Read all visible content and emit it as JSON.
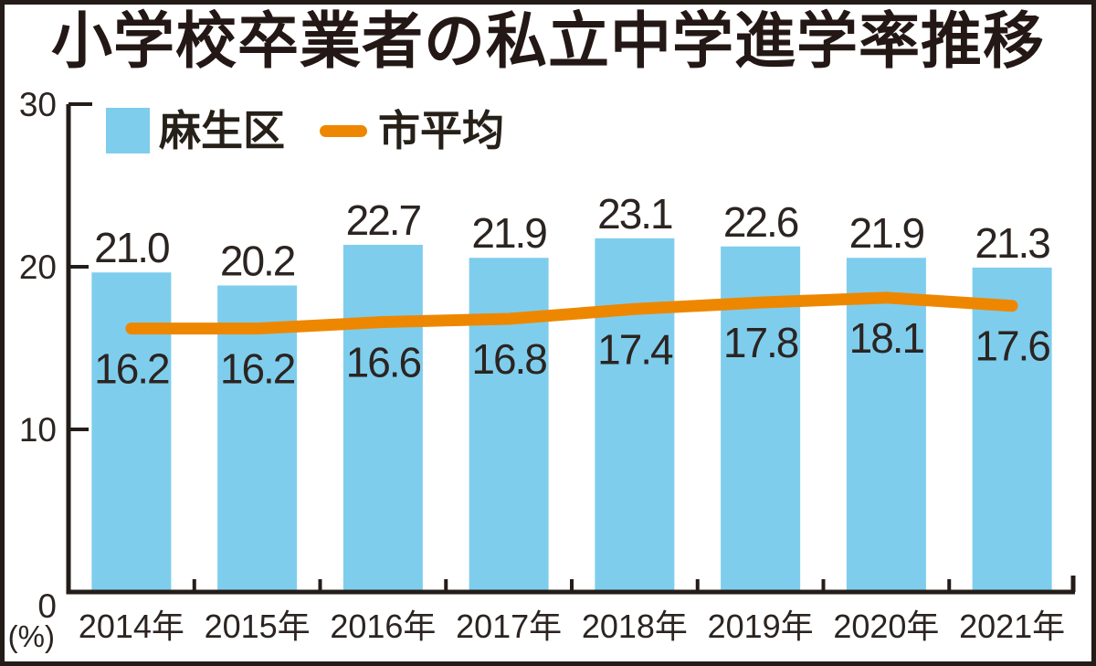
{
  "title": "小学校卒業者の私立中学進学率推移",
  "legend": [
    {
      "label": "麻生区",
      "swatch": "bar-square",
      "color": "#7fcded"
    },
    {
      "label": "市平均",
      "swatch": "line-segment",
      "color": "#ee8700"
    }
  ],
  "chart_data": {
    "type": "bar",
    "subtype": "bar+line combo",
    "categories": [
      "2014年",
      "2015年",
      "2016年",
      "2017年",
      "2018年",
      "2019年",
      "2020年",
      "2021年"
    ],
    "series": [
      {
        "name": "麻生区",
        "type": "bar",
        "color": "#7fcded",
        "values": [
          21.0,
          20.2,
          22.7,
          21.9,
          23.1,
          22.6,
          21.9,
          21.3
        ]
      },
      {
        "name": "市平均",
        "type": "line",
        "color": "#ee8700",
        "values": [
          16.2,
          16.2,
          16.6,
          16.8,
          17.4,
          17.8,
          18.1,
          17.6
        ]
      }
    ],
    "title": "小学校卒業者の私立中学進学率推移",
    "xlabel": "",
    "ylabel": "(%)",
    "yticks": [
      0,
      10,
      20,
      30
    ],
    "ylim": [
      0,
      30
    ],
    "grid": false,
    "legend_position": "top-left",
    "value_label_format": "one-decimal",
    "text_color": "#2b2421",
    "axis_color": "#241c18"
  }
}
